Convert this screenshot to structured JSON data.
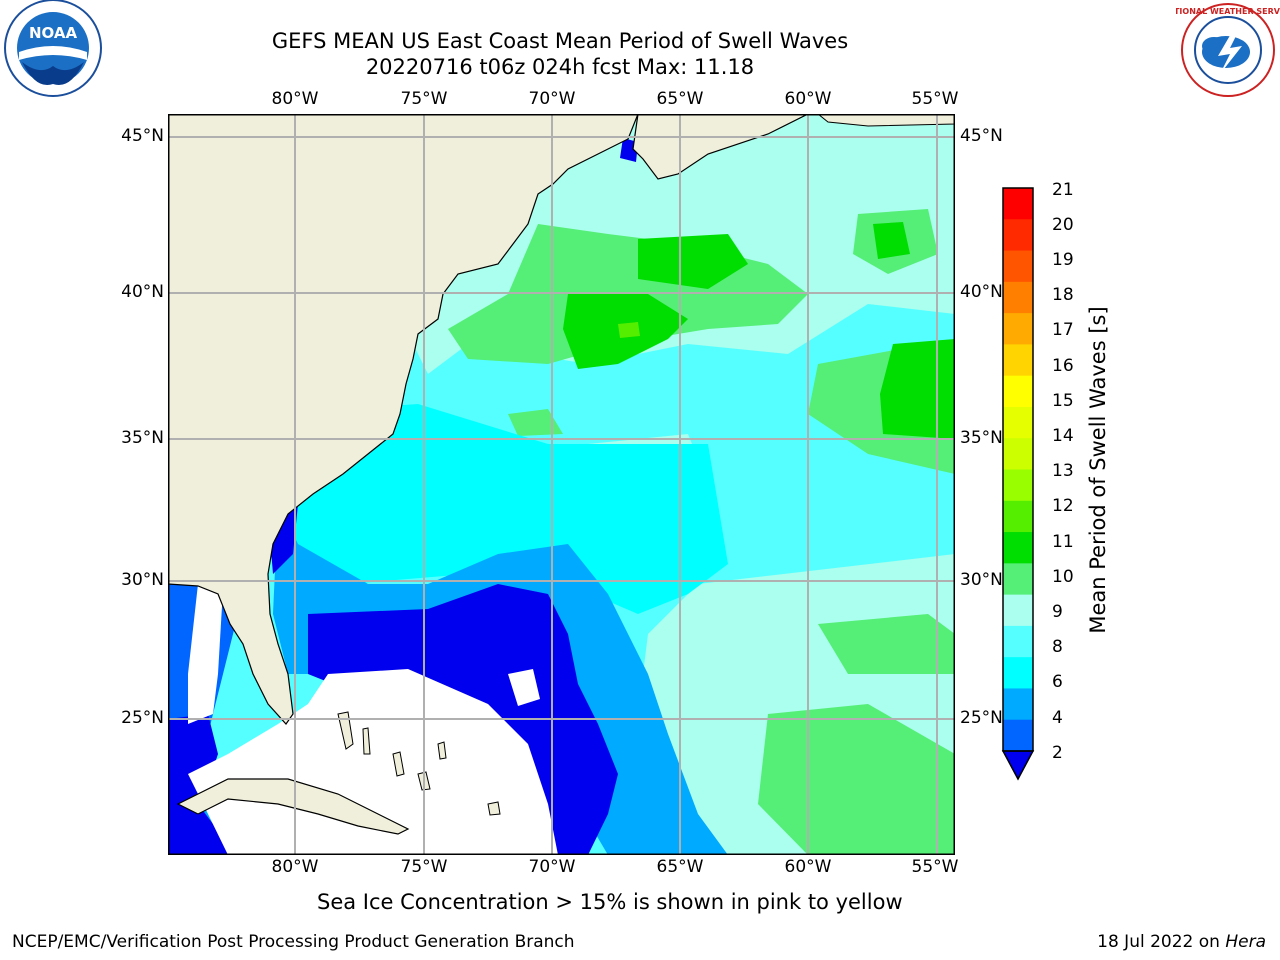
{
  "header": {
    "title_line1": "GEFS MEAN US East Coast Mean Period of Swell Waves",
    "title_line2": "20220716 t06z 024h fcst   Max: 11.18"
  },
  "logos": {
    "left": {
      "text": "NOAA",
      "icon": "noaa-logo-icon"
    },
    "right": {
      "text": "NATIONAL WEATHER SERVICE",
      "icon": "nws-logo-icon"
    }
  },
  "map": {
    "lon_labels": [
      "80°W",
      "75°W",
      "70°W",
      "65°W",
      "60°W",
      "55°W"
    ],
    "lat_labels": [
      "45°N",
      "40°N",
      "35°N",
      "30°N",
      "25°N"
    ],
    "land_color": "#efefdb",
    "missing_color": "#ffffff"
  },
  "colorbar": {
    "title": "Mean Period of Swell Waves [s]",
    "ticks": [
      "21",
      "20",
      "19",
      "18",
      "17",
      "16",
      "15",
      "14",
      "13",
      "12",
      "11",
      "10",
      "9",
      "8",
      "6",
      "4",
      "2"
    ],
    "colors": [
      "#ff0000",
      "#ff2a00",
      "#ff5500",
      "#ff8000",
      "#ffaa00",
      "#ffd400",
      "#ffff00",
      "#e6ff00",
      "#ccff00",
      "#99ff00",
      "#55ee00",
      "#00dd00",
      "#55ee77",
      "#aaffee",
      "#55ffff",
      "#00ffff",
      "#00aaff",
      "#0066ff",
      "#0000ee"
    ]
  },
  "footer": {
    "note": "Sea Ice Concentration > 15% is shown in pink to yellow",
    "credit": "NCEP/EMC/Verification Post Processing Product Generation Branch",
    "date_prefix": "18 Jul 2022 on ",
    "host": "Hera"
  }
}
